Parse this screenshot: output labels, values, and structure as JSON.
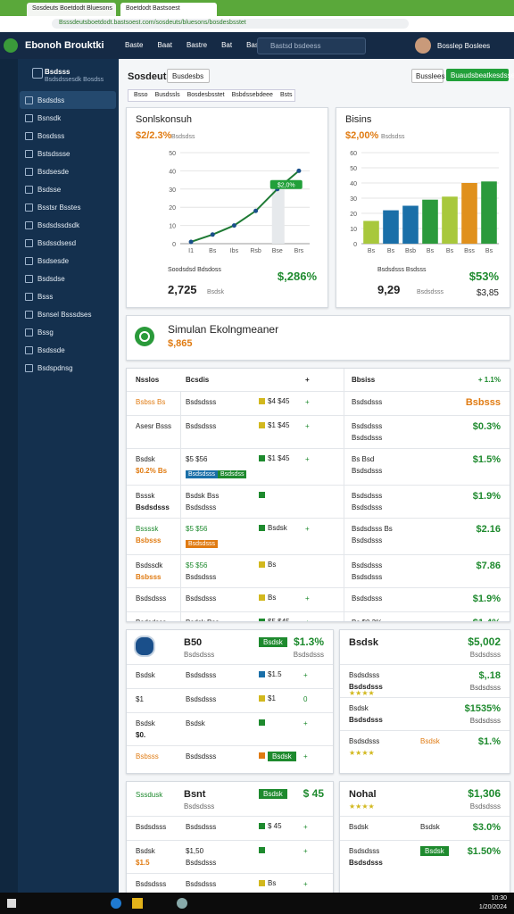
{
  "browser": {
    "tabs": [
      "Sosdeuts Boetdodt Bluesons",
      "Boetdodt Bastsoest"
    ],
    "url": "Bsssdeutsboetdodt.bastsoest.com/sosdeuts/bluesons/bosdesbsstet"
  },
  "header": {
    "brand": "Ebonoh Brouktki",
    "nav": [
      "Baste",
      "Baat",
      "Bastre",
      "Bat",
      "Basttet"
    ],
    "search": "Bastsd bsdeess",
    "user": "Bosslep Boslees"
  },
  "sidebar": {
    "profile": "Bsdsss",
    "profile_sub": "Bsdsdssesdk Bosdss",
    "items": [
      "Bsdsdss",
      "Bsnsdk",
      "Bosdsss",
      "Bstsdssse",
      "Bsdsesde",
      "Bsdsse",
      "Bsstsr Bsstes",
      "Bsdsdssdsdk",
      "Bsdssdsesd",
      "Bsdsesde",
      "Bsdsdse",
      "Bsss",
      "Bsnsel Bsssdses",
      "Bssg",
      "Bsdssde",
      "Bsdspdnsg"
    ]
  },
  "page": {
    "title": "Sosdeuts",
    "filter": "Busdesbs",
    "select": "Busslees",
    "button": "Buaudsbeatkesdssee",
    "tabs": [
      "Bsso",
      "Busdssls",
      "Bosdesbsstet",
      "Bsbdssebdeee",
      "Bsts"
    ]
  },
  "line_chart": {
    "title": "Sonlskonsuh",
    "value": "$2/2.3%",
    "value_note": "Bsdsdss",
    "categories": [
      "I1",
      "Bs",
      "Ibs",
      "Rsb",
      "Bse",
      "Brs"
    ],
    "values": [
      1,
      5,
      10,
      18,
      30,
      40
    ],
    "ylim": [
      0,
      50
    ],
    "yticks": [
      0,
      10,
      20,
      30,
      40,
      50
    ],
    "color": "#1e7a34",
    "annotation": "$2,0%",
    "footer_label": "Soodsdsd Bdsdoss",
    "footer_value": "2,725",
    "footer_note": "Bsdsk",
    "footer_amount": "$,286%"
  },
  "bar_chart": {
    "title": "Bisins",
    "value": "$2,00%",
    "value_note": "Bsdsdss",
    "categories": [
      "Bs",
      "Bs",
      "Bsb",
      "Bs",
      "Bs",
      "Bss",
      "Bs"
    ],
    "values": [
      15,
      22,
      25,
      29,
      31,
      40,
      41
    ],
    "colors": [
      "#a8c83c",
      "#1a6fa8",
      "#1a6fa8",
      "#2b9a3c",
      "#a8c83c",
      "#e0901c",
      "#2b9a3c"
    ],
    "ylim": [
      0,
      60
    ],
    "yticks": [
      0,
      10,
      20,
      30,
      40,
      50,
      60
    ],
    "footer_label": "Bsdsdsss Bsdsss",
    "footer_value": "9,29",
    "footer_note": "Bsdsdsss",
    "footer_amount": "$53%",
    "footer_amount2": "$3,85"
  },
  "summary": {
    "title": "Simulan Ekolngmeaner",
    "value": "$,865"
  },
  "table": {
    "header": [
      "Nsslos",
      "Bcsdis",
      "+",
      "Bbsiss",
      "+ 1.1%"
    ],
    "rows": [
      {
        "name": "Bsbss Bs",
        "name_tone": "orange",
        "desc": "Bsdsdsss",
        "tag": "$4 $45",
        "tag_color": "yellow",
        "flag": "+",
        "right": "Bsdsdsss",
        "amount": "Bsbsss",
        "amount_tone": "orange"
      },
      {
        "name": "Asesr Bsss",
        "desc": "Bsdsdsss",
        "tag": "$1 $45",
        "tag_color": "yellow",
        "flag": "+",
        "right": "Bsdsdsss",
        "right2": "Bsdsdsss",
        "amount": "$0.3%"
      },
      {
        "name": "Bsdsk",
        "name2": "$0.2% Bs",
        "name2_tone": "orange",
        "desc": "$5 $56",
        "chips": [
          "Bsdsdsss",
          "Bsdsdss"
        ],
        "tag": "$1 $45",
        "tag_color": "green",
        "flag": "+",
        "right": "Bs Bsd",
        "right2": "Bsdsdsss",
        "amount": "$1.5%"
      },
      {
        "name": "Bsssk",
        "name2": "Bsdsdsss",
        "desc": "Bsdsk Bss",
        "desc2": "Bsdsdsss",
        "tag_color": "green",
        "right": "Bsdsdsss",
        "right2": "Bsdsdsss",
        "amount": "$1.9%"
      },
      {
        "name": "Bssssk",
        "name_tone": "green",
        "name2": "Bsbsss",
        "name2_tone": "orange",
        "desc": "$5 $56",
        "desc_tone": "green",
        "chips": [
          "Bsdsdsss"
        ],
        "tag": "Bsdsk",
        "tag_color": "green",
        "flag": "+",
        "right": "Bsdsdsss Bs",
        "right2": "Bsdsdsss",
        "amount": "$2.16"
      },
      {
        "name": "Bsdssdk",
        "name2": "Bsbsss",
        "name2_tone": "orange",
        "desc": "$5 $56",
        "desc_tone": "green",
        "desc2": "Bsdsdsss",
        "tag": "Bs",
        "tag_color": "yellow",
        "right": "Bsdsdsss",
        "right2": "Bsdsdsss",
        "amount": "$7.86"
      },
      {
        "name": "Bsdsdsss",
        "desc": "Bsdsdsss",
        "tag": "Bs",
        "tag_color": "yellow",
        "flag": "+",
        "right": "Bsdsdsss",
        "amount": "$1.9%"
      },
      {
        "name": "Bsdsdsss",
        "name2": "$0.3%",
        "name2_tone": "green",
        "desc": "Bsdsk Bss",
        "desc2": "Bsdsdsss",
        "tag": "$5 $45",
        "tag_color": "green",
        "flag": "+",
        "right": "Bs $0.3%",
        "right2": "Bsdsdsss",
        "amount": "$1.4%"
      }
    ]
  },
  "cards": [
    {
      "title": "B50",
      "subtitle": "Bsdsdsss",
      "badge": "Bsdsk",
      "value": "$1.3%",
      "value_sub": "Bsdsdsss",
      "rows": [
        {
          "name": "Bsdsk",
          "desc": "Bsdsdsss",
          "tag": "$1.5",
          "tag_color": "blue",
          "flag": "+"
        },
        {
          "name": "$1",
          "desc": "Bsdsdsss",
          "tag": "$1",
          "tag_color": "yellow",
          "flag": "0"
        },
        {
          "name": "Bsdsk",
          "name2": "$0.",
          "desc": "Bsdsk",
          "tag_color": "green",
          "flag": "+"
        },
        {
          "name": "Bsbsss",
          "name_tone": "orange",
          "desc": "Bsdsdsss",
          "tag_color": "orange",
          "badge": "Bsdsk",
          "flag": "+"
        }
      ]
    },
    {
      "title": "Bsdsk",
      "value": "$5,002",
      "value_sub": "Bsdsdsss",
      "rows": [
        {
          "name": "Bsdsdsss",
          "name2": "Bsdsdsss",
          "rating": "★★★★",
          "amount": "$,.18",
          "amount2": "Bsdsdsss"
        },
        {
          "name": "Bsdsk",
          "name2": "Bsdsdsss",
          "amount": "$1535%",
          "amount2": "Bsdsdsss"
        },
        {
          "name": "Bsdsdsss",
          "rating": "★★★★",
          "desc": "Bsdsk",
          "desc_tone": "orange",
          "amount": "$1.%"
        }
      ]
    },
    {
      "title": "Bsnt",
      "subtitle": "Bsdsdsss",
      "lead": "Sssdusk",
      "badge": "Bsdsk",
      "value": "$ 45",
      "rows": [
        {
          "name": "Bsdsdsss",
          "desc": "Bsdsdsss",
          "tag": "$ 45",
          "tag_color": "green",
          "flag": "+"
        },
        {
          "name": "Bsdsk",
          "name2": "$1.5",
          "name2_tone": "orange",
          "desc": "$1,50",
          "desc2": "Bsdsdsss",
          "tag_color": "green",
          "flag": "+"
        },
        {
          "name": "Bsdsdsss",
          "desc": "Bsdsdsss",
          "tag": "Bs",
          "tag_color": "yellow",
          "flag": "+"
        }
      ]
    },
    {
      "title": "Nohal",
      "rating": "★★★★",
      "value": "$1,306",
      "value_sub": "Bsdsdsss",
      "rows": [
        {
          "name": "Bsdsk",
          "desc": "Bsdsk",
          "amount": "$3.0%"
        },
        {
          "name": "Bsdsdsss",
          "name2": "Bsdsdsss",
          "badge": "Bsdsk",
          "amount": "$1.50%"
        }
      ]
    }
  ],
  "taskbar": {
    "time": "10:30",
    "date": "1/20/2024"
  }
}
